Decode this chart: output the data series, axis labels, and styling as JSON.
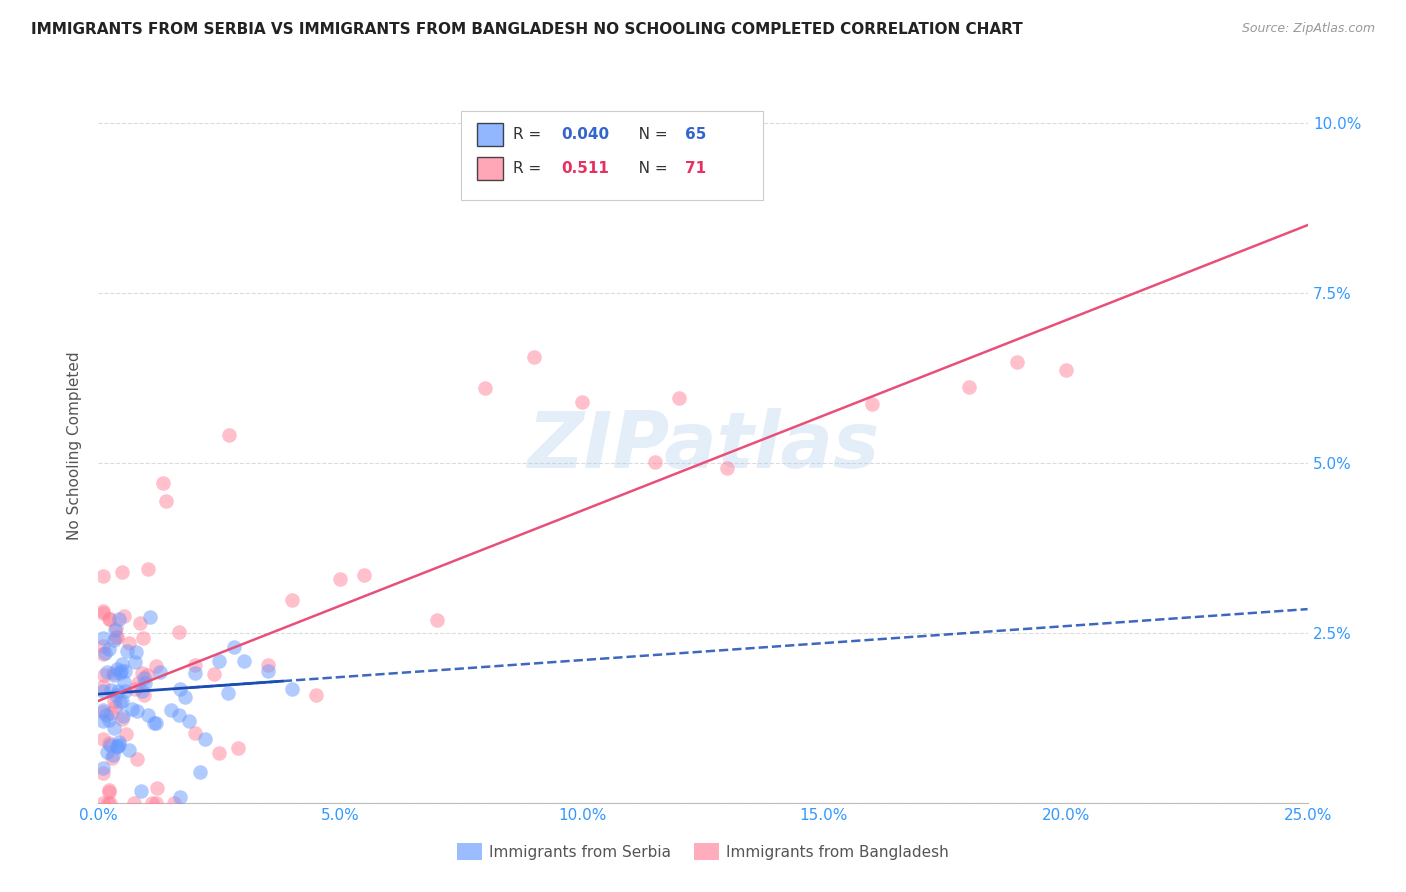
{
  "title": "IMMIGRANTS FROM SERBIA VS IMMIGRANTS FROM BANGLADESH NO SCHOOLING COMPLETED CORRELATION CHART",
  "source": "Source: ZipAtlas.com",
  "ylabel": "No Schooling Completed",
  "xlim": [
    0.0,
    0.25
  ],
  "ylim": [
    0.0,
    0.105
  ],
  "serbia_color": "#6699FF",
  "bangladesh_color": "#FF8099",
  "serbia_line_color": "#1a4db5",
  "bangladesh_line_color": "#e8507a",
  "serbia_R": "0.040",
  "serbia_N": "65",
  "bangladesh_R": "0.511",
  "bangladesh_N": "71",
  "watermark": "ZIPatlas",
  "background_color": "#ffffff",
  "grid_color": "#cccccc"
}
